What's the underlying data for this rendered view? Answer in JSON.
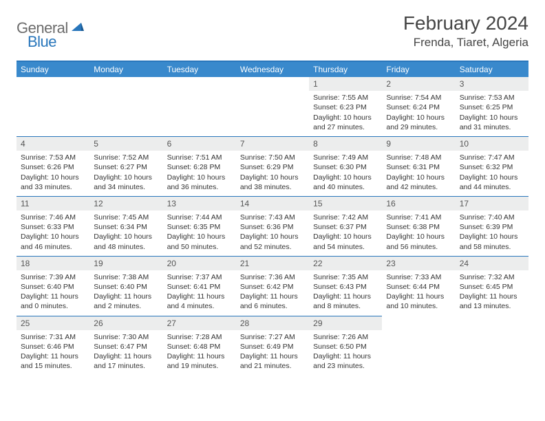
{
  "logo": {
    "gray": "General",
    "blue": "Blue"
  },
  "header": {
    "title": "February 2024",
    "location": "Frenda, Tiaret, Algeria"
  },
  "colors": {
    "accent": "#2876bb",
    "header_bg": "#3989cc",
    "daynum_bg": "#eceded",
    "text": "#333333",
    "logo_gray": "#6b6b6b"
  },
  "weekdays": [
    "Sunday",
    "Monday",
    "Tuesday",
    "Wednesday",
    "Thursday",
    "Friday",
    "Saturday"
  ],
  "grid": {
    "leading_blanks": 4,
    "days": [
      {
        "n": "1",
        "sunrise": "Sunrise: 7:55 AM",
        "sunset": "Sunset: 6:23 PM",
        "day1": "Daylight: 10 hours",
        "day2": "and 27 minutes."
      },
      {
        "n": "2",
        "sunrise": "Sunrise: 7:54 AM",
        "sunset": "Sunset: 6:24 PM",
        "day1": "Daylight: 10 hours",
        "day2": "and 29 minutes."
      },
      {
        "n": "3",
        "sunrise": "Sunrise: 7:53 AM",
        "sunset": "Sunset: 6:25 PM",
        "day1": "Daylight: 10 hours",
        "day2": "and 31 minutes."
      },
      {
        "n": "4",
        "sunrise": "Sunrise: 7:53 AM",
        "sunset": "Sunset: 6:26 PM",
        "day1": "Daylight: 10 hours",
        "day2": "and 33 minutes."
      },
      {
        "n": "5",
        "sunrise": "Sunrise: 7:52 AM",
        "sunset": "Sunset: 6:27 PM",
        "day1": "Daylight: 10 hours",
        "day2": "and 34 minutes."
      },
      {
        "n": "6",
        "sunrise": "Sunrise: 7:51 AM",
        "sunset": "Sunset: 6:28 PM",
        "day1": "Daylight: 10 hours",
        "day2": "and 36 minutes."
      },
      {
        "n": "7",
        "sunrise": "Sunrise: 7:50 AM",
        "sunset": "Sunset: 6:29 PM",
        "day1": "Daylight: 10 hours",
        "day2": "and 38 minutes."
      },
      {
        "n": "8",
        "sunrise": "Sunrise: 7:49 AM",
        "sunset": "Sunset: 6:30 PM",
        "day1": "Daylight: 10 hours",
        "day2": "and 40 minutes."
      },
      {
        "n": "9",
        "sunrise": "Sunrise: 7:48 AM",
        "sunset": "Sunset: 6:31 PM",
        "day1": "Daylight: 10 hours",
        "day2": "and 42 minutes."
      },
      {
        "n": "10",
        "sunrise": "Sunrise: 7:47 AM",
        "sunset": "Sunset: 6:32 PM",
        "day1": "Daylight: 10 hours",
        "day2": "and 44 minutes."
      },
      {
        "n": "11",
        "sunrise": "Sunrise: 7:46 AM",
        "sunset": "Sunset: 6:33 PM",
        "day1": "Daylight: 10 hours",
        "day2": "and 46 minutes."
      },
      {
        "n": "12",
        "sunrise": "Sunrise: 7:45 AM",
        "sunset": "Sunset: 6:34 PM",
        "day1": "Daylight: 10 hours",
        "day2": "and 48 minutes."
      },
      {
        "n": "13",
        "sunrise": "Sunrise: 7:44 AM",
        "sunset": "Sunset: 6:35 PM",
        "day1": "Daylight: 10 hours",
        "day2": "and 50 minutes."
      },
      {
        "n": "14",
        "sunrise": "Sunrise: 7:43 AM",
        "sunset": "Sunset: 6:36 PM",
        "day1": "Daylight: 10 hours",
        "day2": "and 52 minutes."
      },
      {
        "n": "15",
        "sunrise": "Sunrise: 7:42 AM",
        "sunset": "Sunset: 6:37 PM",
        "day1": "Daylight: 10 hours",
        "day2": "and 54 minutes."
      },
      {
        "n": "16",
        "sunrise": "Sunrise: 7:41 AM",
        "sunset": "Sunset: 6:38 PM",
        "day1": "Daylight: 10 hours",
        "day2": "and 56 minutes."
      },
      {
        "n": "17",
        "sunrise": "Sunrise: 7:40 AM",
        "sunset": "Sunset: 6:39 PM",
        "day1": "Daylight: 10 hours",
        "day2": "and 58 minutes."
      },
      {
        "n": "18",
        "sunrise": "Sunrise: 7:39 AM",
        "sunset": "Sunset: 6:40 PM",
        "day1": "Daylight: 11 hours",
        "day2": "and 0 minutes."
      },
      {
        "n": "19",
        "sunrise": "Sunrise: 7:38 AM",
        "sunset": "Sunset: 6:40 PM",
        "day1": "Daylight: 11 hours",
        "day2": "and 2 minutes."
      },
      {
        "n": "20",
        "sunrise": "Sunrise: 7:37 AM",
        "sunset": "Sunset: 6:41 PM",
        "day1": "Daylight: 11 hours",
        "day2": "and 4 minutes."
      },
      {
        "n": "21",
        "sunrise": "Sunrise: 7:36 AM",
        "sunset": "Sunset: 6:42 PM",
        "day1": "Daylight: 11 hours",
        "day2": "and 6 minutes."
      },
      {
        "n": "22",
        "sunrise": "Sunrise: 7:35 AM",
        "sunset": "Sunset: 6:43 PM",
        "day1": "Daylight: 11 hours",
        "day2": "and 8 minutes."
      },
      {
        "n": "23",
        "sunrise": "Sunrise: 7:33 AM",
        "sunset": "Sunset: 6:44 PM",
        "day1": "Daylight: 11 hours",
        "day2": "and 10 minutes."
      },
      {
        "n": "24",
        "sunrise": "Sunrise: 7:32 AM",
        "sunset": "Sunset: 6:45 PM",
        "day1": "Daylight: 11 hours",
        "day2": "and 13 minutes."
      },
      {
        "n": "25",
        "sunrise": "Sunrise: 7:31 AM",
        "sunset": "Sunset: 6:46 PM",
        "day1": "Daylight: 11 hours",
        "day2": "and 15 minutes."
      },
      {
        "n": "26",
        "sunrise": "Sunrise: 7:30 AM",
        "sunset": "Sunset: 6:47 PM",
        "day1": "Daylight: 11 hours",
        "day2": "and 17 minutes."
      },
      {
        "n": "27",
        "sunrise": "Sunrise: 7:28 AM",
        "sunset": "Sunset: 6:48 PM",
        "day1": "Daylight: 11 hours",
        "day2": "and 19 minutes."
      },
      {
        "n": "28",
        "sunrise": "Sunrise: 7:27 AM",
        "sunset": "Sunset: 6:49 PM",
        "day1": "Daylight: 11 hours",
        "day2": "and 21 minutes."
      },
      {
        "n": "29",
        "sunrise": "Sunrise: 7:26 AM",
        "sunset": "Sunset: 6:50 PM",
        "day1": "Daylight: 11 hours",
        "day2": "and 23 minutes."
      }
    ]
  }
}
